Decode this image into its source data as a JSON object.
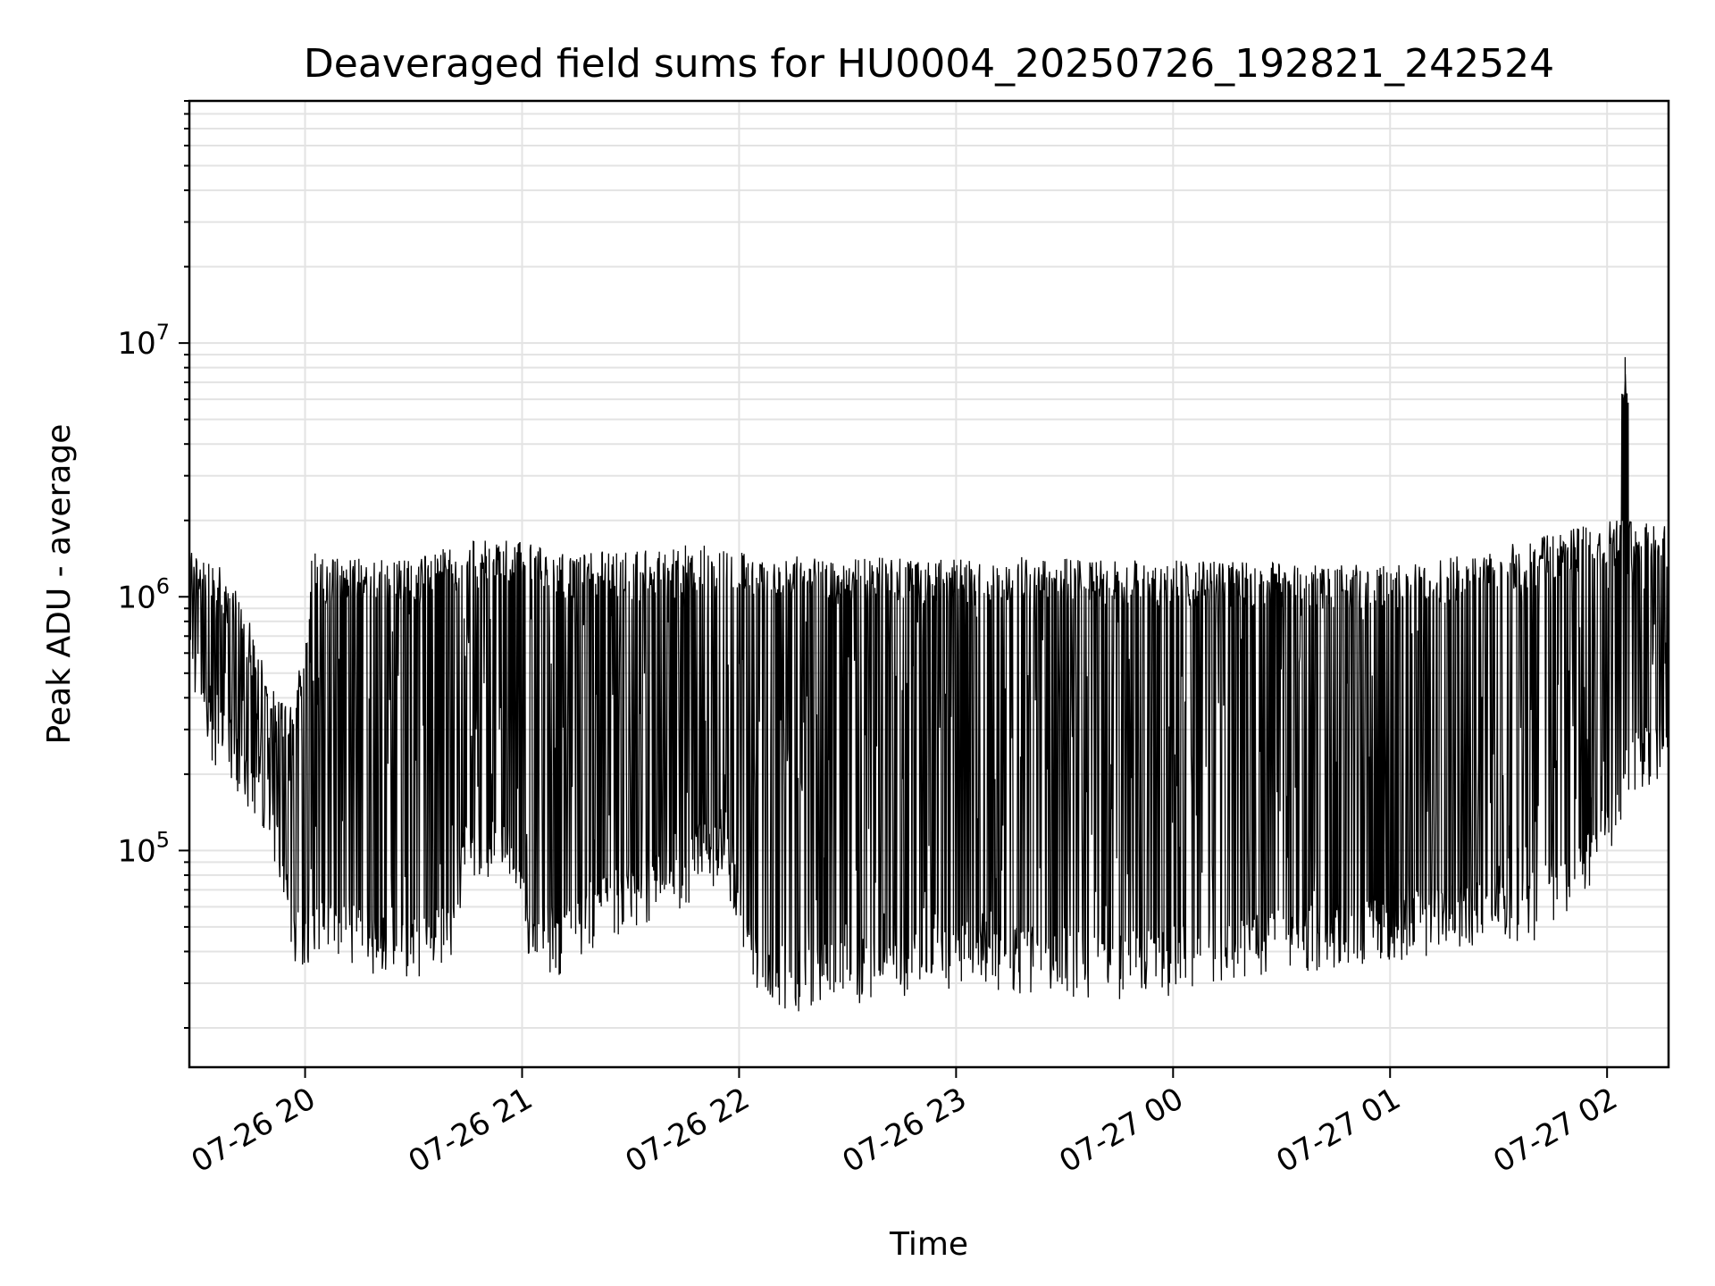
{
  "chart_data": {
    "type": "line",
    "title": "Deaveraged field sums for HU0004_20250726_192821_242524",
    "xlabel": "Time",
    "ylabel": "Peak ADU - average",
    "x_type": "datetime",
    "xlim": [
      "2025-07-26 19:28",
      "2025-07-27 02:17"
    ],
    "ylim": [
      14000,
      90000000
    ],
    "yscale": "log",
    "grid": true,
    "legend": "none",
    "x_ticks": [
      "07-26 20",
      "07-26 21",
      "07-26 22",
      "07-26 23",
      "07-27 00",
      "07-27 01",
      "07-27 02"
    ],
    "y_ticks": [
      {
        "base": "10",
        "exp": "5"
      },
      {
        "base": "10",
        "exp": "6"
      },
      {
        "base": "10",
        "exp": "7"
      }
    ],
    "series_color": "#000000",
    "series": [
      {
        "x": [
          "2025-07-26 19:28",
          "2025-07-26 19:35",
          "2025-07-26 19:42",
          "2025-07-26 19:50",
          "2025-07-26 19:57",
          "2025-07-26 20:02",
          "2025-07-26 20:10",
          "2025-07-26 20:20",
          "2025-07-26 20:30",
          "2025-07-26 20:40",
          "2025-07-26 20:45",
          "2025-07-26 20:55",
          "2025-07-26 21:03",
          "2025-07-26 21:10",
          "2025-07-26 21:20",
          "2025-07-26 21:30",
          "2025-07-26 21:45",
          "2025-07-26 21:55",
          "2025-07-26 22:05",
          "2025-07-26 22:15",
          "2025-07-26 22:30",
          "2025-07-26 22:45",
          "2025-07-26 23:00",
          "2025-07-26 23:20",
          "2025-07-26 23:40",
          "2025-07-27 00:00",
          "2025-07-27 00:20",
          "2025-07-27 00:40",
          "2025-07-27 01:00",
          "2025-07-27 01:20",
          "2025-07-27 01:40",
          "2025-07-27 02:00",
          "2025-07-27 02:05",
          "2025-07-27 02:17"
        ],
        "upper": [
          1500000,
          1400000,
          1000000,
          500000,
          350000,
          1500000,
          1400000,
          1500000,
          1400000,
          1600000,
          1650000,
          1700000,
          1600000,
          1500000,
          1500000,
          1550000,
          1600000,
          1650000,
          1500000,
          1450000,
          1400000,
          1450000,
          1400000,
          1450000,
          1400000,
          1400000,
          1400000,
          1350000,
          1350000,
          1450000,
          1700000,
          2000000,
          8800000,
          1900000
        ],
        "lower": [
          600000,
          260000,
          200000,
          140000,
          40000,
          45000,
          48000,
          38000,
          37000,
          40000,
          95000,
          95000,
          42000,
          40000,
          52000,
          60000,
          75000,
          95000,
          30000,
          28000,
          30000,
          32000,
          35000,
          34000,
          32000,
          33000,
          38000,
          42000,
          45000,
          50000,
          55000,
          100000,
          180000,
          250000
        ]
      }
    ]
  }
}
